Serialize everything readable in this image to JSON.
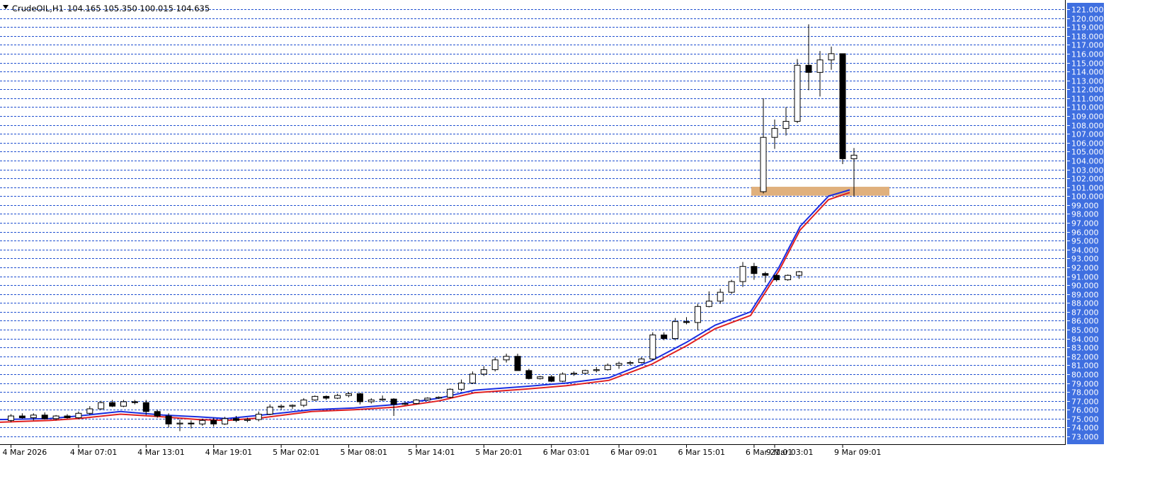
{
  "header": {
    "symbol_timeframe": "CrudeOIL,H1",
    "ohlc": "104.165 105.350 100.015 104.635"
  },
  "colors": {
    "background": "#ffffff",
    "grid": "#1f4fd0",
    "axis_panel": "#3f6fe0",
    "candle_up_fill": "#ffffff",
    "candle_down_fill": "#000000",
    "ma_fast": "#1a2ee0",
    "ma_slow": "#e02020",
    "zone": "#e0b07c"
  },
  "chart_data": {
    "type": "candlestick",
    "ylim": [
      72.5,
      121.5
    ],
    "grid": true,
    "y_ticks": [
      "73.000",
      "74.000",
      "75.000",
      "76.000",
      "77.000",
      "78.000",
      "79.000",
      "80.000",
      "81.000",
      "82.000",
      "83.000",
      "84.000",
      "85.000",
      "86.000",
      "87.000",
      "88.000",
      "89.000",
      "90.000",
      "91.000",
      "92.000",
      "93.000",
      "94.000",
      "95.000",
      "96.000",
      "97.000",
      "98.000",
      "99.000",
      "100.000",
      "101.000",
      "102.000",
      "103.000",
      "104.000",
      "105.000",
      "106.000",
      "107.000",
      "108.000",
      "109.000",
      "110.000",
      "111.000",
      "112.000",
      "113.000",
      "114.000",
      "115.000",
      "116.000",
      "117.000",
      "118.000",
      "119.000",
      "120.000",
      "121.000"
    ],
    "x_ticks": [
      {
        "label": "4 Mar 2026",
        "index": 0
      },
      {
        "label": "4 Mar 07:01",
        "index": 6
      },
      {
        "label": "4 Mar 13:01",
        "index": 12
      },
      {
        "label": "4 Mar 19:01",
        "index": 18
      },
      {
        "label": "5 Mar 02:01",
        "index": 24
      },
      {
        "label": "5 Mar 08:01",
        "index": 30
      },
      {
        "label": "5 Mar 14:01",
        "index": 36
      },
      {
        "label": "5 Mar 20:01",
        "index": 42
      },
      {
        "label": "6 Mar 03:01",
        "index": 48
      },
      {
        "label": "6 Mar 09:01",
        "index": 54
      },
      {
        "label": "6 Mar 15:01",
        "index": 60
      },
      {
        "label": "6 Mar 21:01",
        "index": 66
      },
      {
        "label": "9 Mar 03:01",
        "index": 72
      },
      {
        "label": "9 Mar 09:01",
        "index": 78
      }
    ],
    "candles": [
      [
        74.8,
        75.5,
        74.6,
        75.3
      ],
      [
        75.3,
        75.6,
        75.0,
        75.1
      ],
      [
        75.1,
        75.6,
        74.8,
        75.4
      ],
      [
        75.4,
        75.7,
        74.9,
        75.0
      ],
      [
        75.0,
        75.4,
        74.8,
        75.3
      ],
      [
        75.3,
        75.5,
        75.0,
        75.1
      ],
      [
        75.1,
        75.8,
        75.0,
        75.6
      ],
      [
        75.6,
        76.4,
        75.4,
        76.1
      ],
      [
        76.1,
        77.0,
        76.0,
        76.8
      ],
      [
        76.8,
        77.1,
        76.3,
        76.4
      ],
      [
        76.4,
        77.1,
        76.3,
        76.9
      ],
      [
        76.9,
        77.1,
        76.6,
        76.8
      ],
      [
        76.8,
        77.1,
        75.4,
        75.8
      ],
      [
        75.8,
        76.0,
        75.1,
        75.3
      ],
      [
        75.3,
        75.6,
        74.0,
        74.4
      ],
      [
        74.4,
        74.9,
        73.6,
        74.5
      ],
      [
        74.5,
        74.8,
        73.9,
        74.4
      ],
      [
        74.4,
        75.0,
        74.2,
        74.8
      ],
      [
        74.8,
        75.1,
        74.1,
        74.4
      ],
      [
        74.4,
        75.2,
        74.3,
        75.0
      ],
      [
        75.0,
        75.3,
        74.6,
        74.8
      ],
      [
        74.8,
        75.1,
        74.6,
        74.9
      ],
      [
        74.9,
        75.8,
        74.7,
        75.5
      ],
      [
        75.5,
        76.6,
        75.4,
        76.3
      ],
      [
        76.3,
        76.6,
        76.0,
        76.4
      ],
      [
        76.4,
        76.6,
        76.1,
        76.5
      ],
      [
        76.5,
        77.3,
        76.3,
        77.1
      ],
      [
        77.1,
        77.6,
        77.0,
        77.5
      ],
      [
        77.5,
        77.6,
        77.1,
        77.3
      ],
      [
        77.3,
        77.8,
        77.2,
        77.6
      ],
      [
        77.6,
        78.0,
        77.4,
        77.8
      ],
      [
        77.8,
        77.9,
        76.6,
        76.9
      ],
      [
        76.9,
        77.3,
        76.7,
        77.1
      ],
      [
        77.1,
        77.6,
        77.0,
        77.2
      ],
      [
        77.2,
        77.3,
        75.3,
        76.6
      ],
      [
        76.6,
        76.9,
        76.5,
        76.7
      ],
      [
        76.7,
        77.2,
        76.6,
        77.1
      ],
      [
        77.1,
        77.4,
        77.0,
        77.3
      ],
      [
        77.3,
        77.5,
        77.2,
        77.4
      ],
      [
        77.4,
        78.4,
        77.3,
        78.3
      ],
      [
        78.3,
        79.4,
        78.1,
        79.0
      ],
      [
        79.0,
        80.3,
        78.9,
        80.0
      ],
      [
        80.0,
        80.9,
        79.8,
        80.5
      ],
      [
        80.5,
        81.9,
        80.3,
        81.6
      ],
      [
        81.6,
        82.3,
        81.3,
        82.0
      ],
      [
        82.0,
        82.3,
        80.4,
        80.4
      ],
      [
        80.4,
        80.6,
        79.4,
        79.5
      ],
      [
        79.5,
        79.8,
        79.4,
        79.7
      ],
      [
        79.7,
        79.9,
        79.1,
        79.2
      ],
      [
        79.2,
        80.2,
        79.1,
        80.0
      ],
      [
        80.0,
        80.3,
        79.8,
        80.1
      ],
      [
        80.1,
        80.5,
        80.0,
        80.4
      ],
      [
        80.4,
        80.8,
        80.2,
        80.5
      ],
      [
        80.5,
        81.2,
        80.4,
        81.0
      ],
      [
        81.0,
        81.4,
        80.6,
        81.2
      ],
      [
        81.2,
        81.5,
        81.0,
        81.3
      ],
      [
        81.3,
        81.9,
        81.2,
        81.7
      ],
      [
        81.7,
        84.7,
        81.6,
        84.4
      ],
      [
        84.4,
        84.7,
        83.8,
        84.0
      ],
      [
        84.0,
        86.3,
        83.8,
        85.9
      ],
      [
        85.9,
        86.4,
        85.6,
        85.8
      ],
      [
        85.8,
        87.9,
        84.9,
        87.6
      ],
      [
        87.6,
        89.3,
        87.5,
        88.2
      ],
      [
        88.2,
        89.6,
        87.9,
        89.2
      ],
      [
        89.2,
        90.6,
        89.0,
        90.4
      ],
      [
        90.4,
        92.6,
        89.8,
        92.1
      ],
      [
        92.1,
        92.5,
        90.6,
        91.3
      ],
      [
        91.3,
        91.5,
        90.3,
        91.1
      ],
      [
        91.1,
        91.3,
        90.4,
        90.6
      ],
      [
        90.6,
        91.2,
        90.5,
        91.1
      ],
      [
        91.1,
        91.6,
        90.7,
        91.5
      ],
      [
        100.5,
        111.0,
        100.3,
        106.6
      ],
      [
        106.6,
        108.6,
        105.3,
        107.6
      ],
      [
        107.6,
        110.0,
        106.8,
        108.4
      ],
      [
        108.4,
        115.4,
        108.2,
        114.7
      ],
      [
        114.7,
        119.3,
        111.9,
        113.9
      ],
      [
        113.9,
        116.3,
        111.2,
        115.3
      ],
      [
        115.3,
        116.8,
        114.2,
        116.0
      ],
      [
        116.0,
        116.0,
        103.6,
        104.2
      ],
      [
        104.2,
        105.4,
        100.0,
        104.6
      ]
    ],
    "candle_x": [
      15.5,
      31.4,
      47.3,
      63.2,
      79.1,
      95.0,
      110.9,
      126.8,
      142.7,
      158.6,
      174.5,
      190.4,
      206.3,
      222.2,
      238.1,
      254.0,
      269.9,
      285.8,
      301.7,
      317.6,
      333.5,
      349.4,
      365.3,
      381.2,
      397.1,
      413.0,
      428.9,
      444.8,
      460.7,
      476.6,
      492.5,
      508.4,
      524.3,
      540.2,
      556.1,
      572.0,
      587.9,
      603.8,
      619.7,
      635.6,
      651.5,
      667.4,
      683.3,
      699.2,
      715.1,
      731.0,
      746.9,
      762.8,
      778.7,
      794.6,
      810.5,
      826.4,
      842.3,
      858.2,
      874.1,
      890.0,
      905.9,
      921.8,
      937.7,
      953.6,
      969.5,
      985.4,
      1001.3,
      1017.2,
      1033.1,
      1049.0,
      1064.9,
      1080.8,
      1096.7,
      1112.6,
      1128.5,
      1078.0,
      1094.0,
      1110.0,
      1126.0,
      1142.0,
      1158.0,
      1174.0,
      1190.0,
      1206.0
    ],
    "ma_fast": [
      [
        0,
        74.9
      ],
      [
        70,
        75.0
      ],
      [
        110,
        75.3
      ],
      [
        170,
        75.8
      ],
      [
        230,
        75.4
      ],
      [
        280,
        75.2
      ],
      [
        320,
        75.0
      ],
      [
        370,
        75.4
      ],
      [
        440,
        76.0
      ],
      [
        500,
        76.2
      ],
      [
        560,
        76.6
      ],
      [
        620,
        77.3
      ],
      [
        670,
        78.2
      ],
      [
        740,
        78.6
      ],
      [
        800,
        79.0
      ],
      [
        860,
        79.6
      ],
      [
        920,
        81.5
      ],
      [
        970,
        83.6
      ],
      [
        1010,
        85.5
      ],
      [
        1060,
        87.0
      ],
      [
        1100,
        92.0
      ],
      [
        1130,
        96.6
      ],
      [
        1170,
        100.0
      ],
      [
        1200,
        100.7
      ]
    ],
    "ma_slow": [
      [
        0,
        74.6
      ],
      [
        70,
        74.8
      ],
      [
        110,
        75.0
      ],
      [
        170,
        75.5
      ],
      [
        230,
        75.2
      ],
      [
        280,
        74.9
      ],
      [
        320,
        74.8
      ],
      [
        370,
        75.1
      ],
      [
        440,
        75.8
      ],
      [
        500,
        76.0
      ],
      [
        560,
        76.3
      ],
      [
        620,
        77.0
      ],
      [
        670,
        77.9
      ],
      [
        740,
        78.3
      ],
      [
        800,
        78.7
      ],
      [
        860,
        79.3
      ],
      [
        920,
        81.1
      ],
      [
        970,
        83.2
      ],
      [
        1010,
        85.1
      ],
      [
        1060,
        86.6
      ],
      [
        1100,
        91.6
      ],
      [
        1130,
        96.2
      ],
      [
        1170,
        99.6
      ],
      [
        1200,
        100.4
      ]
    ],
    "zone": {
      "x0": 1061,
      "x1": 1256,
      "y_low": 100.05,
      "y_high": 101.05
    }
  }
}
